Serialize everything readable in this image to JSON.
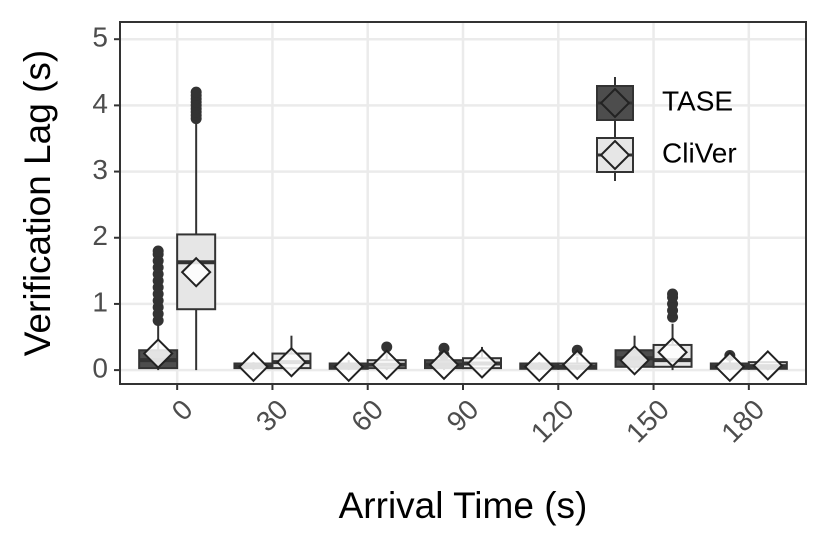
{
  "chart_data": {
    "type": "boxplot",
    "x_label": "Arrival Time (s)",
    "y_label": "Verification Lag (s)",
    "categories": [
      "0",
      "30",
      "60",
      "90",
      "120",
      "150",
      "180"
    ],
    "ylim": [
      -0.21,
      5.26
    ],
    "yticks": [
      0,
      1,
      2,
      3,
      4,
      5
    ],
    "grid": true,
    "legend": "top-right",
    "series": [
      {
        "name": "TASE",
        "color": "#4d4d4d",
        "boxes": [
          {
            "whisker_low": 0,
            "q1": 0.03,
            "median": 0.15,
            "q3": 0.3,
            "whisker_high": 0.7,
            "mean": 0.25,
            "outliers": [
              0.75,
              0.85,
              0.95,
              1.05,
              1.15,
              1.25,
              1.35,
              1.45,
              1.55,
              1.65,
              1.75,
              1.8
            ]
          },
          {
            "whisker_low": 0,
            "q1": 0.03,
            "median": 0.05,
            "q3": 0.1,
            "whisker_high": 0.12,
            "mean": 0.05,
            "outliers": []
          },
          {
            "whisker_low": 0,
            "q1": 0.02,
            "median": 0.05,
            "q3": 0.1,
            "whisker_high": 0.15,
            "mean": 0.05,
            "outliers": []
          },
          {
            "whisker_low": 0,
            "q1": 0.03,
            "median": 0.08,
            "q3": 0.15,
            "whisker_high": 0.2,
            "mean": 0.08,
            "outliers": [
              0.23,
              0.33
            ]
          },
          {
            "whisker_low": 0,
            "q1": 0.02,
            "median": 0.05,
            "q3": 0.1,
            "whisker_high": 0.12,
            "mean": 0.05,
            "outliers": []
          },
          {
            "whisker_low": 0,
            "q1": 0.05,
            "median": 0.18,
            "q3": 0.3,
            "whisker_high": 0.52,
            "mean": 0.15,
            "outliers": []
          },
          {
            "whisker_low": 0,
            "q1": 0.02,
            "median": 0.05,
            "q3": 0.1,
            "whisker_high": 0.15,
            "mean": 0.05,
            "outliers": [
              0.22
            ]
          }
        ]
      },
      {
        "name": "CliVer",
        "color": "#e6e6e6",
        "boxes": [
          {
            "whisker_low": 0,
            "q1": 0.92,
            "median": 1.63,
            "q3": 2.05,
            "whisker_high": 3.75,
            "mean": 1.48,
            "outliers": [
              3.8,
              3.85,
              3.9,
              3.95,
              4.0,
              4.05,
              4.1,
              4.15,
              4.2
            ]
          },
          {
            "whisker_low": 0,
            "q1": 0.03,
            "median": 0.12,
            "q3": 0.25,
            "whisker_high": 0.52,
            "mean": 0.12,
            "outliers": []
          },
          {
            "whisker_low": 0,
            "q1": 0.03,
            "median": 0.08,
            "q3": 0.15,
            "whisker_high": 0.3,
            "mean": 0.08,
            "outliers": [
              0.35
            ]
          },
          {
            "whisker_low": 0,
            "q1": 0.03,
            "median": 0.1,
            "q3": 0.18,
            "whisker_high": 0.35,
            "mean": 0.1,
            "outliers": []
          },
          {
            "whisker_low": 0,
            "q1": 0.02,
            "median": 0.05,
            "q3": 0.1,
            "whisker_high": 0.2,
            "mean": 0.08,
            "outliers": [
              0.3
            ]
          },
          {
            "whisker_low": 0,
            "q1": 0.05,
            "median": 0.15,
            "q3": 0.38,
            "whisker_high": 0.7,
            "mean": 0.27,
            "outliers": [
              0.8,
              0.9,
              1.0,
              1.1,
              1.15
            ]
          },
          {
            "whisker_low": 0,
            "q1": 0.02,
            "median": 0.06,
            "q3": 0.12,
            "whisker_high": 0.12,
            "mean": 0.07,
            "outliers": []
          }
        ]
      }
    ]
  }
}
